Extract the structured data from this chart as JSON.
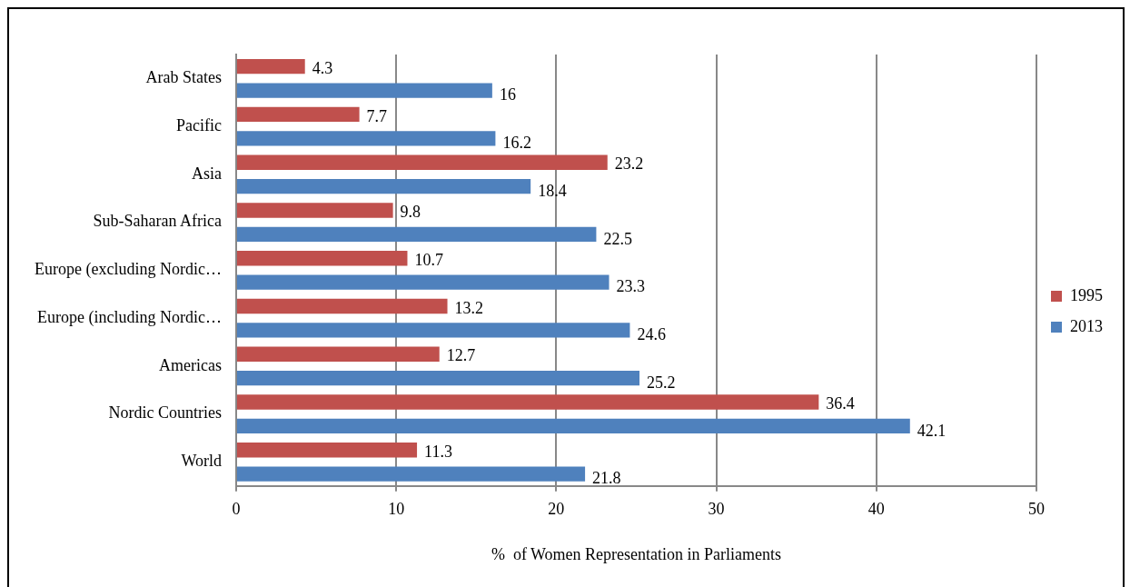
{
  "chart_data": {
    "type": "bar",
    "orientation": "horizontal",
    "xlabel": "%  of Women Representation in Parliaments",
    "categories": [
      "Arab States",
      "Pacific",
      "Asia",
      "Sub-Saharan Africa",
      "Europe (excluding Nordic…",
      "Europe (including Nordic…",
      "Americas",
      "Nordic Countries",
      "World"
    ],
    "series": [
      {
        "name": "1995",
        "color": "#c0504d",
        "values": [
          4.3,
          7.7,
          23.2,
          9.8,
          10.7,
          13.2,
          12.7,
          36.4,
          11.3
        ]
      },
      {
        "name": "2013",
        "color": "#4f81bd",
        "values": [
          16,
          16.2,
          18.4,
          22.5,
          23.3,
          24.6,
          25.2,
          42.1,
          21.8
        ]
      }
    ],
    "xlim": [
      0,
      50
    ],
    "xticks": [
      0,
      10,
      20,
      30,
      40,
      50
    ],
    "grid": "x",
    "legend": "right",
    "data_labels": true
  }
}
